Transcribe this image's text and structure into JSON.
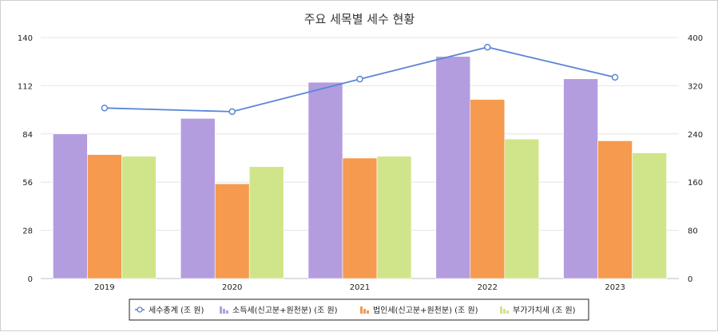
{
  "chart_data": {
    "type": "bar",
    "title": "주요 세목별 세수 현황",
    "categories": [
      "2019",
      "2020",
      "2021",
      "2022",
      "2023"
    ],
    "ylim": [
      0,
      140
    ],
    "y_ticks": [
      0,
      28,
      56,
      84,
      112,
      140
    ],
    "y2lim": [
      0,
      400
    ],
    "y2_ticks": [
      0,
      80,
      160,
      240,
      320,
      400
    ],
    "grid": true,
    "legend_position": "bottom",
    "series": [
      {
        "name": "소득세(신고분+원천분) (조 원)",
        "type": "bar",
        "axis": "left",
        "color": "#b39ddf",
        "values": [
          84,
          93,
          114,
          129,
          116
        ]
      },
      {
        "name": "법인세(신고분+원천분) (조 원)",
        "type": "bar",
        "axis": "left",
        "color": "#f59a4f",
        "values": [
          72,
          55,
          70,
          104,
          80
        ]
      },
      {
        "name": "부가가치세 (조 원)",
        "type": "bar",
        "axis": "left",
        "color": "#d0e58a",
        "values": [
          71,
          65,
          71,
          81,
          73
        ]
      },
      {
        "name": "세수총계 (조 원)",
        "type": "line",
        "axis": "right",
        "color": "#5b86d6",
        "values": [
          283,
          277,
          331,
          384,
          334
        ]
      }
    ]
  }
}
